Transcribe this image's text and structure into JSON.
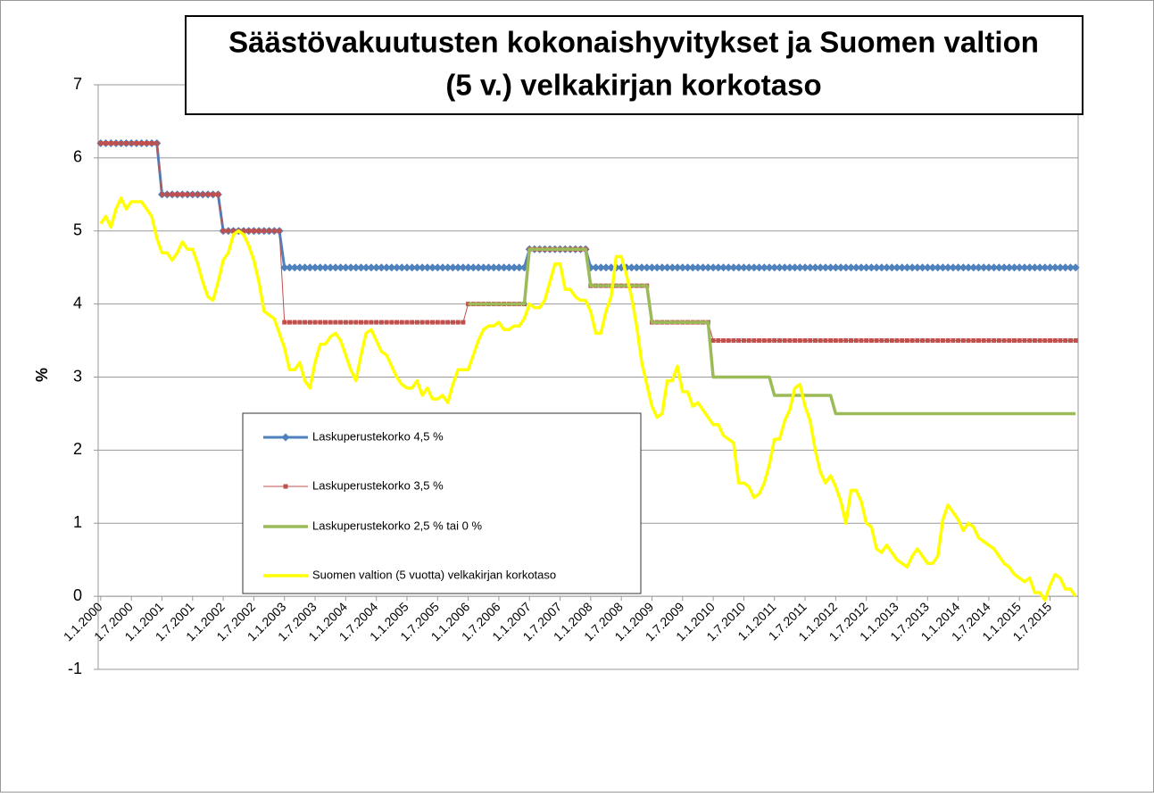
{
  "chart_data": {
    "type": "line",
    "title": "Säästövakuutusten kokonaishyvitykset ja Suomen valtion (5 v.) velkakirjan korkotaso",
    "title_lines": [
      "Säästövakuutusten kokonaishyvitykset ja Suomen valtion",
      "(5 v.) velkakirjan korkotaso"
    ],
    "y_label": "%",
    "ylim": [
      -1,
      7
    ],
    "yticks": [
      -1,
      0,
      1,
      2,
      3,
      4,
      5,
      6,
      7
    ],
    "grid": true,
    "categories": [
      "1.1.2000",
      null,
      null,
      null,
      null,
      null,
      "1.7.2000",
      null,
      null,
      null,
      null,
      null,
      "1.1.2001",
      null,
      null,
      null,
      null,
      null,
      "1.7.2001",
      null,
      null,
      null,
      null,
      null,
      "1.1.2002",
      null,
      null,
      null,
      null,
      null,
      "1.7.2002",
      null,
      null,
      null,
      null,
      null,
      "1.1.2003",
      null,
      null,
      null,
      null,
      null,
      "1.7.2003",
      null,
      null,
      null,
      null,
      null,
      "1.1.2004",
      null,
      null,
      null,
      null,
      null,
      "1.7.2004",
      null,
      null,
      null,
      null,
      null,
      "1.1.2005",
      null,
      null,
      null,
      null,
      null,
      "1.7.2005",
      null,
      null,
      null,
      null,
      null,
      "1.1.2006",
      null,
      null,
      null,
      null,
      null,
      "1.7.2006",
      null,
      null,
      null,
      null,
      null,
      "1.1.2007",
      null,
      null,
      null,
      null,
      null,
      "1.7.2007",
      null,
      null,
      null,
      null,
      null,
      "1.1.2008",
      null,
      null,
      null,
      null,
      null,
      "1.7.2008",
      null,
      null,
      null,
      null,
      null,
      "1.1.2009",
      null,
      null,
      null,
      null,
      null,
      "1.7.2009",
      null,
      null,
      null,
      null,
      null,
      "1.1.2010",
      null,
      null,
      null,
      null,
      null,
      "1.7.2010",
      null,
      null,
      null,
      null,
      null,
      "1.1.2011",
      null,
      null,
      null,
      null,
      null,
      "1.7.2011",
      null,
      null,
      null,
      null,
      null,
      "1.1.2012",
      null,
      null,
      null,
      null,
      null,
      "1.7.2012",
      null,
      null,
      null,
      null,
      null,
      "1.1.2013",
      null,
      null,
      null,
      null,
      null,
      "1.7.2013",
      null,
      null,
      null,
      null,
      null,
      "1.1.2014",
      null,
      null,
      null,
      null,
      null,
      "1.7.2014",
      null,
      null,
      null,
      null,
      null,
      "1.1.2015",
      null,
      null,
      null,
      null,
      null,
      "1.7.2015",
      null,
      null,
      null,
      null,
      null
    ],
    "series": [
      {
        "name": "Laskuperustekorko 4,5 %",
        "color": "#4f81bd",
        "width": 3,
        "marker": "diamond",
        "values": [
          6.2,
          6.2,
          6.2,
          6.2,
          6.2,
          6.2,
          6.2,
          6.2,
          6.2,
          6.2,
          6.2,
          6.2,
          5.5,
          5.5,
          5.5,
          5.5,
          5.5,
          5.5,
          5.5,
          5.5,
          5.5,
          5.5,
          5.5,
          5.5,
          5,
          5,
          5,
          5,
          5,
          5,
          5,
          5,
          5,
          5,
          5,
          5,
          4.5,
          4.5,
          4.5,
          4.5,
          4.5,
          4.5,
          4.5,
          4.5,
          4.5,
          4.5,
          4.5,
          4.5,
          4.5,
          4.5,
          4.5,
          4.5,
          4.5,
          4.5,
          4.5,
          4.5,
          4.5,
          4.5,
          4.5,
          4.5,
          4.5,
          4.5,
          4.5,
          4.5,
          4.5,
          4.5,
          4.5,
          4.5,
          4.5,
          4.5,
          4.5,
          4.5,
          4.5,
          4.5,
          4.5,
          4.5,
          4.5,
          4.5,
          4.5,
          4.5,
          4.5,
          4.5,
          4.5,
          4.5,
          4.75,
          4.75,
          4.75,
          4.75,
          4.75,
          4.75,
          4.75,
          4.75,
          4.75,
          4.75,
          4.75,
          4.75,
          4.5,
          4.5,
          4.5,
          4.5,
          4.5,
          4.5,
          4.5,
          4.5,
          4.5,
          4.5,
          4.5,
          4.5,
          4.5,
          4.5,
          4.5,
          4.5,
          4.5,
          4.5,
          4.5,
          4.5,
          4.5,
          4.5,
          4.5,
          4.5,
          4.5,
          4.5,
          4.5,
          4.5,
          4.5,
          4.5,
          4.5,
          4.5,
          4.5,
          4.5,
          4.5,
          4.5,
          4.5,
          4.5,
          4.5,
          4.5,
          4.5,
          4.5,
          4.5,
          4.5,
          4.5,
          4.5,
          4.5,
          4.5,
          4.5,
          4.5,
          4.5,
          4.5,
          4.5,
          4.5,
          4.5,
          4.5,
          4.5,
          4.5,
          4.5,
          4.5,
          4.5,
          4.5,
          4.5,
          4.5,
          4.5,
          4.5,
          4.5,
          4.5,
          4.5,
          4.5,
          4.5,
          4.5,
          4.5,
          4.5,
          4.5,
          4.5,
          4.5,
          4.5,
          4.5,
          4.5,
          4.5,
          4.5,
          4.5,
          4.5,
          4.5,
          4.5,
          4.5,
          4.5,
          4.5,
          4.5,
          4.5,
          4.5,
          4.5,
          4.5,
          4.5,
          4.5
        ]
      },
      {
        "name": "Laskuperustekorko 3,5 %",
        "color": "#c0504d",
        "width": 1,
        "marker": "square",
        "values": [
          6.2,
          6.2,
          6.2,
          6.2,
          6.2,
          6.2,
          6.2,
          6.2,
          6.2,
          6.2,
          6.2,
          6.2,
          5.5,
          5.5,
          5.5,
          5.5,
          5.5,
          5.5,
          5.5,
          5.5,
          5.5,
          5.5,
          5.5,
          5.5,
          5,
          5,
          5,
          5,
          5,
          5,
          5,
          5,
          5,
          5,
          5,
          5,
          3.75,
          3.75,
          3.75,
          3.75,
          3.75,
          3.75,
          3.75,
          3.75,
          3.75,
          3.75,
          3.75,
          3.75,
          3.75,
          3.75,
          3.75,
          3.75,
          3.75,
          3.75,
          3.75,
          3.75,
          3.75,
          3.75,
          3.75,
          3.75,
          3.75,
          3.75,
          3.75,
          3.75,
          3.75,
          3.75,
          3.75,
          3.75,
          3.75,
          3.75,
          3.75,
          3.75,
          4,
          4,
          4,
          4,
          4,
          4,
          4,
          4,
          4,
          4,
          4,
          4,
          4.75,
          4.75,
          4.75,
          4.75,
          4.75,
          4.75,
          4.75,
          4.75,
          4.75,
          4.75,
          4.75,
          4.75,
          4.25,
          4.25,
          4.25,
          4.25,
          4.25,
          4.25,
          4.25,
          4.25,
          4.25,
          4.25,
          4.25,
          4.25,
          3.75,
          3.75,
          3.75,
          3.75,
          3.75,
          3.75,
          3.75,
          3.75,
          3.75,
          3.75,
          3.75,
          3.75,
          3.5,
          3.5,
          3.5,
          3.5,
          3.5,
          3.5,
          3.5,
          3.5,
          3.5,
          3.5,
          3.5,
          3.5,
          3.5,
          3.5,
          3.5,
          3.5,
          3.5,
          3.5,
          3.5,
          3.5,
          3.5,
          3.5,
          3.5,
          3.5,
          3.5,
          3.5,
          3.5,
          3.5,
          3.5,
          3.5,
          3.5,
          3.5,
          3.5,
          3.5,
          3.5,
          3.5,
          3.5,
          3.5,
          3.5,
          3.5,
          3.5,
          3.5,
          3.5,
          3.5,
          3.5,
          3.5,
          3.5,
          3.5,
          3.5,
          3.5,
          3.5,
          3.5,
          3.5,
          3.5,
          3.5,
          3.5,
          3.5,
          3.5,
          3.5,
          3.5,
          3.5,
          3.5,
          3.5,
          3.5,
          3.5,
          3.5,
          3.5,
          3.5,
          3.5,
          3.5,
          3.5,
          3.5
        ]
      },
      {
        "name": "Laskuperustekorko 2,5 % tai 0 %",
        "color": "#9bbb59",
        "width": 3.5,
        "marker": "none",
        "values": [
          null,
          null,
          null,
          null,
          null,
          null,
          null,
          null,
          null,
          null,
          null,
          null,
          null,
          null,
          null,
          null,
          null,
          null,
          null,
          null,
          null,
          null,
          null,
          null,
          null,
          null,
          null,
          null,
          null,
          null,
          null,
          null,
          null,
          null,
          null,
          null,
          null,
          null,
          null,
          null,
          null,
          null,
          null,
          null,
          null,
          null,
          null,
          null,
          null,
          null,
          null,
          null,
          null,
          null,
          null,
          null,
          null,
          null,
          null,
          null,
          null,
          null,
          null,
          null,
          null,
          null,
          null,
          null,
          null,
          null,
          null,
          null,
          4,
          4,
          4,
          4,
          4,
          4,
          4,
          4,
          4,
          4,
          4,
          4,
          4.75,
          4.75,
          4.75,
          4.75,
          4.75,
          4.75,
          4.75,
          4.75,
          4.75,
          4.75,
          4.75,
          4.75,
          4.25,
          4.25,
          4.25,
          4.25,
          4.25,
          4.25,
          4.25,
          4.25,
          4.25,
          4.25,
          4.25,
          4.25,
          3.75,
          3.75,
          3.75,
          3.75,
          3.75,
          3.75,
          3.75,
          3.75,
          3.75,
          3.75,
          3.75,
          3.75,
          3,
          3,
          3,
          3,
          3,
          3,
          3,
          3,
          3,
          3,
          3,
          3,
          2.75,
          2.75,
          2.75,
          2.75,
          2.75,
          2.75,
          2.75,
          2.75,
          2.75,
          2.75,
          2.75,
          2.75,
          2.5,
          2.5,
          2.5,
          2.5,
          2.5,
          2.5,
          2.5,
          2.5,
          2.5,
          2.5,
          2.5,
          2.5,
          2.5,
          2.5,
          2.5,
          2.5,
          2.5,
          2.5,
          2.5,
          2.5,
          2.5,
          2.5,
          2.5,
          2.5,
          2.5,
          2.5,
          2.5,
          2.5,
          2.5,
          2.5,
          2.5,
          2.5,
          2.5,
          2.5,
          2.5,
          2.5,
          2.5,
          2.5,
          2.5,
          2.5,
          2.5,
          2.5,
          2.5,
          2.5,
          2.5,
          2.5,
          2.5,
          2.5
        ]
      },
      {
        "name": "Suomen valtion (5 vuotta) velkakirjan korkotaso",
        "color": "#ffff00",
        "width": 3.5,
        "marker": "none",
        "values": [
          5.1,
          5.2,
          5.05,
          5.3,
          5.45,
          5.3,
          5.4,
          5.4,
          5.4,
          5.3,
          5.2,
          4.9,
          4.7,
          4.7,
          4.6,
          4.7,
          4.85,
          4.75,
          4.75,
          4.55,
          4.3,
          4.1,
          4.05,
          4.3,
          4.6,
          4.7,
          4.95,
          5.0,
          4.95,
          4.8,
          4.6,
          4.3,
          3.9,
          3.85,
          3.8,
          3.6,
          3.4,
          3.1,
          3.1,
          3.2,
          2.95,
          2.85,
          3.2,
          3.45,
          3.45,
          3.55,
          3.6,
          3.5,
          3.3,
          3.1,
          2.95,
          3.3,
          3.6,
          3.65,
          3.5,
          3.35,
          3.3,
          3.15,
          3.0,
          2.9,
          2.85,
          2.85,
          2.95,
          2.75,
          2.85,
          2.7,
          2.7,
          2.75,
          2.65,
          2.9,
          3.1,
          3.1,
          3.1,
          3.3,
          3.5,
          3.65,
          3.7,
          3.7,
          3.75,
          3.65,
          3.65,
          3.7,
          3.7,
          3.8,
          4.0,
          3.95,
          3.95,
          4.05,
          4.3,
          4.55,
          4.55,
          4.2,
          4.2,
          4.1,
          4.05,
          4.05,
          3.9,
          3.6,
          3.6,
          3.9,
          4.1,
          4.65,
          4.65,
          4.4,
          4.1,
          3.7,
          3.2,
          2.9,
          2.6,
          2.45,
          2.5,
          2.95,
          2.95,
          3.15,
          2.8,
          2.8,
          2.6,
          2.65,
          2.55,
          2.45,
          2.35,
          2.35,
          2.2,
          2.15,
          2.1,
          1.55,
          1.55,
          1.5,
          1.35,
          1.4,
          1.55,
          1.8,
          2.15,
          2.15,
          2.4,
          2.55,
          2.85,
          2.9,
          2.6,
          2.4,
          2.0,
          1.7,
          1.55,
          1.65,
          1.5,
          1.3,
          1.0,
          1.45,
          1.45,
          1.3,
          1.0,
          0.95,
          0.65,
          0.6,
          0.7,
          0.6,
          0.5,
          0.45,
          0.4,
          0.55,
          0.65,
          0.55,
          0.45,
          0.45,
          0.55,
          1.05,
          1.25,
          1.15,
          1.05,
          0.9,
          1.0,
          0.95,
          0.8,
          0.75,
          0.7,
          0.65,
          0.55,
          0.45,
          0.4,
          0.3,
          0.25,
          0.2,
          0.25,
          0.05,
          0.05,
          -0.05,
          0.15,
          0.3,
          0.25,
          0.1,
          0.1,
          0.0
        ]
      }
    ]
  }
}
